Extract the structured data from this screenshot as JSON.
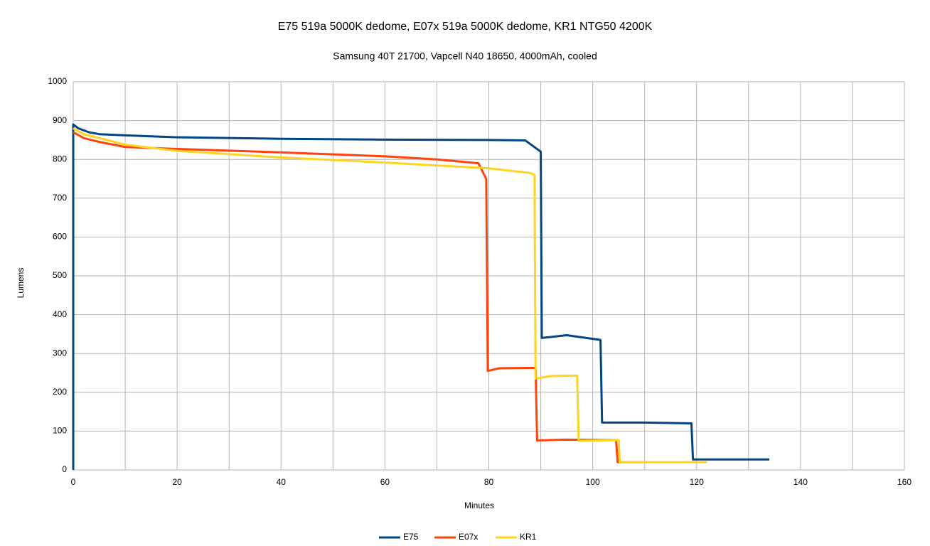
{
  "chart_data": {
    "type": "line",
    "title": "E75 519a 5000K dedome, E07x 519a 5000K dedome, KR1 NTG50 4200K",
    "subtitle": "Samsung 40T 21700, Vapcell N40 18650, 4000mAh, cooled",
    "x_label": "Minutes",
    "y_label": "Lumens",
    "xlim": [
      0,
      160
    ],
    "xticks": [
      0,
      20,
      40,
      60,
      80,
      100,
      120,
      140,
      160
    ],
    "ylim": [
      0,
      1000
    ],
    "yticks": [
      0,
      100,
      200,
      300,
      400,
      500,
      600,
      700,
      800,
      900,
      1000
    ],
    "grid": true,
    "legend": "bottom",
    "series": [
      {
        "name": "E75",
        "color": "#004586",
        "x": [
          0,
          0,
          1,
          3,
          5,
          10,
          20,
          40,
          60,
          80,
          87,
          90,
          90.2,
          95,
          101.5,
          101.8,
          110,
          119,
          119.3,
          134
        ],
        "values": [
          0,
          890,
          880,
          870,
          865,
          862,
          857,
          853,
          851,
          850,
          849,
          820,
          340,
          347,
          335,
          122,
          122,
          120,
          27,
          27
        ]
      },
      {
        "name": "E07x",
        "color": "#ff420e",
        "x": [
          0,
          2,
          5,
          10,
          20,
          40,
          60,
          70,
          78,
          79.5,
          79.8,
          82,
          89,
          89.3,
          95,
          104.5,
          104.8,
          110
        ],
        "values": [
          870,
          855,
          845,
          832,
          827,
          818,
          808,
          800,
          790,
          750,
          255,
          262,
          263,
          76,
          78,
          77,
          20,
          20
        ]
      },
      {
        "name": "KR1",
        "color": "#ffd320",
        "x": [
          0,
          2,
          10,
          20,
          40,
          60,
          80,
          88,
          88.8,
          89,
          92,
          97,
          97.3,
          105,
          105.2,
          122
        ],
        "values": [
          880,
          865,
          838,
          822,
          805,
          792,
          777,
          765,
          760,
          235,
          242,
          243,
          75,
          77,
          20,
          20
        ]
      }
    ]
  }
}
